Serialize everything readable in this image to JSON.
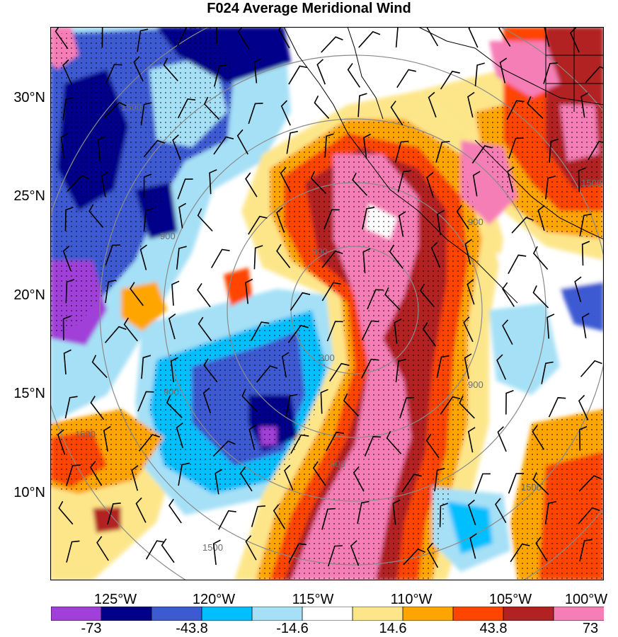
{
  "title": "F024 Average Meridional Wind",
  "map": {
    "lat_labels": [
      "30°N",
      "25°N",
      "20°N",
      "15°N",
      "10°N"
    ],
    "lon_labels": [
      "125°W",
      "120°W",
      "115°W",
      "110°W",
      "105°W",
      "100°W"
    ],
    "range_ring_labels": [
      "300",
      "300",
      "900",
      "900",
      "900",
      "900",
      "1500",
      "1500",
      "1500",
      "1500",
      "1500",
      "900"
    ],
    "stipple_overlay": true,
    "wind_barbs": true
  },
  "colorbar": {
    "colors": [
      "#a040d8",
      "#00008b",
      "#3c5ad2",
      "#00bfff",
      "#a6e0f6",
      "#ffffff",
      "#fde68a",
      "#ffa500",
      "#ff4500",
      "#b22222",
      "#f57eb6"
    ],
    "tick_labels": [
      "-73",
      "-43.8",
      "-14.6",
      "14.6",
      "43.8",
      "73"
    ]
  }
}
